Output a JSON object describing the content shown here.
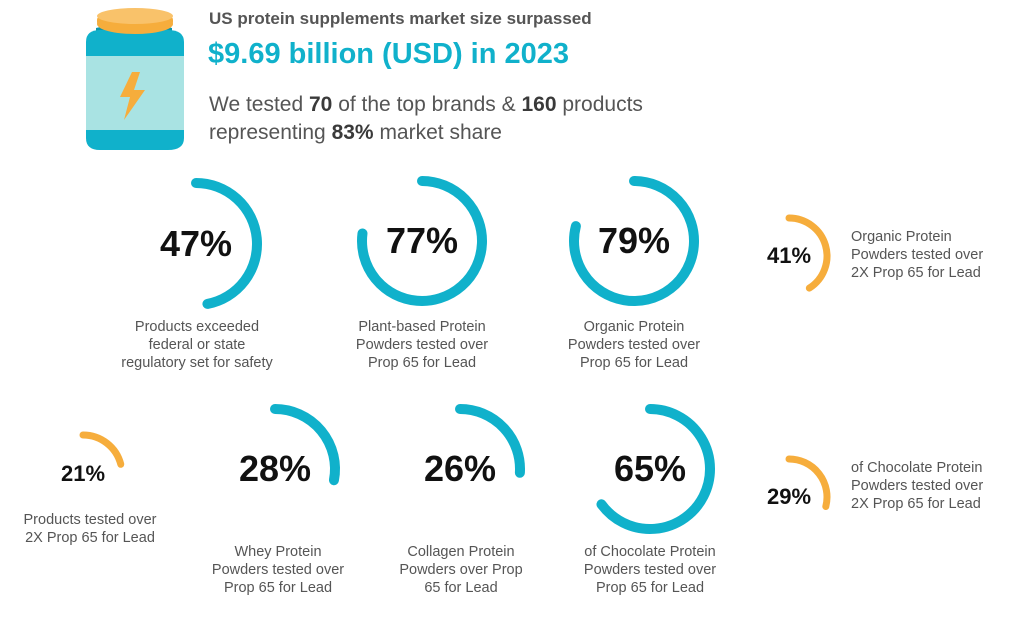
{
  "header": {
    "line1": "US protein supplements market size surpassed",
    "line2": "$9.69 billion (USD) in 2023",
    "line3_parts": [
      "We tested ",
      "70",
      " of the top brands & ",
      "160",
      " products"
    ],
    "line4_parts": [
      "representing ",
      "83%",
      " market share"
    ]
  },
  "icons": {
    "jar": "protein-jar-icon",
    "bolt": "lightning-bolt-icon"
  },
  "colors": {
    "teal": "#10b1cb",
    "orange": "#f6ad3c",
    "jar_body": "#10b1cb",
    "jar_label": "#a9e3e3",
    "jar_lid": "#f6ad3c",
    "heading_text": "#555555",
    "value_text": "#111111"
  },
  "stats": [
    {
      "id": "products-exceeded",
      "value": "47%",
      "fraction": 0.47,
      "color": "teal",
      "size": "big",
      "caption": "Products exceeded\nfederal or state\nregulatory set for safety"
    },
    {
      "id": "plant-based",
      "value": "77%",
      "fraction": 0.77,
      "color": "teal",
      "size": "big",
      "caption": "Plant-based Protein\nPowders tested over\nProp 65 for Lead"
    },
    {
      "id": "organic",
      "value": "79%",
      "fraction": 0.79,
      "color": "teal",
      "size": "big",
      "caption": "Organic Protein\nPowders tested over\nProp 65 for Lead"
    },
    {
      "id": "organic-2x",
      "value": "41%",
      "fraction": 0.41,
      "color": "orange",
      "size": "small",
      "caption": "Organic Protein\nPowders tested over\n2X Prop 65 for Lead"
    },
    {
      "id": "products-2x",
      "value": "21%",
      "fraction": 0.21,
      "color": "orange",
      "size": "small",
      "caption": "Products tested over\n2X Prop 65 for Lead"
    },
    {
      "id": "whey",
      "value": "28%",
      "fraction": 0.28,
      "color": "teal",
      "size": "big",
      "caption": "Whey Protein\nPowders tested over\nProp 65 for Lead"
    },
    {
      "id": "collagen",
      "value": "26%",
      "fraction": 0.26,
      "color": "teal",
      "size": "big",
      "caption": "Collagen Protein\nPowders over Prop\n65 for Lead"
    },
    {
      "id": "chocolate",
      "value": "65%",
      "fraction": 0.65,
      "color": "teal",
      "size": "big",
      "caption": "of Chocolate Protein\nPowders tested over\nProp 65 for Lead"
    },
    {
      "id": "chocolate-2x",
      "value": "29%",
      "fraction": 0.29,
      "color": "orange",
      "size": "small",
      "caption": "of Chocolate Protein\nPowders tested over\n2X Prop 65 for Lead"
    }
  ]
}
